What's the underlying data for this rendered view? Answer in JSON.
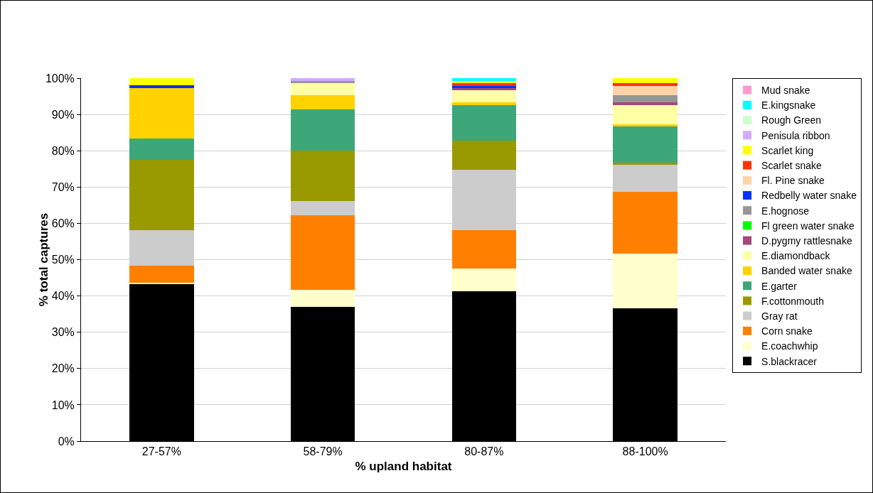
{
  "chart_data": {
    "type": "bar",
    "stacked": true,
    "xlabel": "% upland habitat",
    "ylabel": "% total captures",
    "categories": [
      "27-57%",
      "58-79%",
      "80-87%",
      "88-100%"
    ],
    "ylim": [
      0,
      100
    ],
    "yticks": [
      {
        "value": 0,
        "label": "0%"
      },
      {
        "value": 10,
        "label": "10%"
      },
      {
        "value": 20,
        "label": "20%"
      },
      {
        "value": 30,
        "label": "30%"
      },
      {
        "value": 40,
        "label": "40%"
      },
      {
        "value": 50,
        "label": "50%"
      },
      {
        "value": 60,
        "label": "60%"
      },
      {
        "value": 70,
        "label": "70%"
      },
      {
        "value": 80,
        "label": "80%"
      },
      {
        "value": 90,
        "label": "90%"
      },
      {
        "value": 100,
        "label": "100%"
      }
    ],
    "grid": "y",
    "legend": "right",
    "series": [
      {
        "name": "S.blackracer",
        "color": "#000000",
        "values": [
          43.2,
          37.0,
          41.3,
          36.6
        ]
      },
      {
        "name": "E.coachwhip",
        "color": "#ffffcc",
        "values": [
          0.4,
          4.7,
          6.3,
          15.1
        ]
      },
      {
        "name": "Corn snake",
        "color": "#ff8000",
        "values": [
          4.7,
          20.5,
          10.5,
          17.0
        ]
      },
      {
        "name": "Gray rat",
        "color": "#cccccc",
        "values": [
          9.8,
          3.9,
          16.7,
          7.4
        ]
      },
      {
        "name": "F.cottonmouth",
        "color": "#999900",
        "values": [
          19.4,
          14.0,
          8.0,
          0.6
        ]
      },
      {
        "name": "E.garter",
        "color": "#3da77a",
        "values": [
          5.9,
          11.3,
          9.8,
          10.0
        ]
      },
      {
        "name": "Banded water snake",
        "color": "#ffd200",
        "values": [
          13.9,
          3.9,
          0.7,
          0.6
        ]
      },
      {
        "name": "E.diamondback",
        "color": "#ffffa6",
        "values": [
          0,
          3.3,
          3.4,
          5.3
        ]
      },
      {
        "name": "D.pygmy rattlesnake",
        "color": "#a5487a",
        "values": [
          0,
          0,
          0.6,
          0.7
        ]
      },
      {
        "name": "Fl green water snake",
        "color": "#00ff00",
        "values": [
          0,
          0,
          0,
          0
        ]
      },
      {
        "name": "E.hognose",
        "color": "#969696",
        "values": [
          0,
          0.6,
          0,
          2.0
        ]
      },
      {
        "name": "Redbelly water snake",
        "color": "#0033ff",
        "values": [
          0.8,
          0,
          0.5,
          0
        ]
      },
      {
        "name": "Fl. Pine snake",
        "color": "#ffd3a8",
        "values": [
          0,
          0,
          0,
          2.5
        ]
      },
      {
        "name": "Scarlet snake",
        "color": "#ff3300",
        "values": [
          0,
          0,
          0.8,
          0.8
        ]
      },
      {
        "name": "Scarlet king",
        "color": "#ffff00",
        "values": [
          1.9,
          0,
          0.6,
          1.4
        ]
      },
      {
        "name": "Penisula ribbon",
        "color": "#d4aaff",
        "values": [
          0,
          0.8,
          0,
          0
        ]
      },
      {
        "name": "Rough Green",
        "color": "#ccffcc",
        "values": [
          0,
          0,
          0,
          0
        ]
      },
      {
        "name": "E.kingsnake",
        "color": "#00ffff",
        "values": [
          0,
          0,
          0.8,
          0
        ]
      },
      {
        "name": "Mud snake",
        "color": "#ff99cc",
        "values": [
          0,
          0,
          0,
          0
        ]
      }
    ]
  }
}
